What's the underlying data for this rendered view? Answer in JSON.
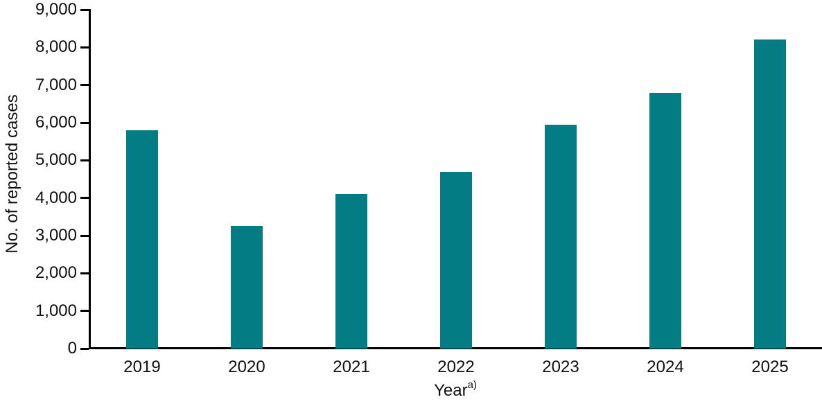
{
  "chart_data": {
    "type": "bar",
    "title": "",
    "xlabel": "Year",
    "xlabel_superscript": "a)",
    "ylabel": "No. of reported cases",
    "categories": [
      "2019",
      "2020",
      "2021",
      "2022",
      "2023",
      "2024",
      "2025"
    ],
    "values": [
      5800,
      3250,
      4100,
      4700,
      5950,
      6800,
      8200
    ],
    "ylim": [
      0,
      9000
    ],
    "ytick_interval": 1000,
    "ytick_labels": [
      "0",
      "1,000",
      "2,000",
      "3,000",
      "4,000",
      "5,000",
      "6,000",
      "7,000",
      "8,000",
      "9,000"
    ],
    "grid": false,
    "legend": null,
    "colors": {
      "bar": "#047c84",
      "axis": "#000000",
      "text": "#111111"
    }
  }
}
